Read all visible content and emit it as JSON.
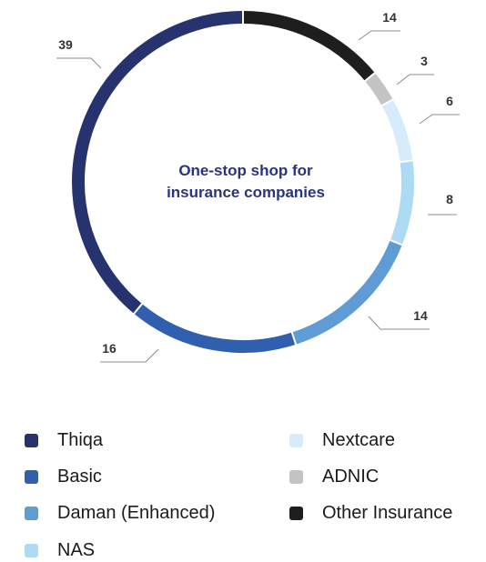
{
  "chart_data": {
    "type": "pie",
    "donut": true,
    "title": "One-stop shop for insurance companies",
    "title_lines": [
      "One-stop shop for",
      "insurance companies"
    ],
    "categories": [
      "Other Insurance",
      "ADNIC",
      "Nextcare",
      "NAS",
      "Daman (Enhanced)",
      "Basic",
      "Thiqa"
    ],
    "values": [
      14,
      3,
      6,
      8,
      14,
      16,
      39
    ],
    "colors": [
      "#1e1e1e",
      "#c4c4c4",
      "#d6ecfa",
      "#aedbf4",
      "#5f9cd6",
      "#2f5fae",
      "#27336f"
    ],
    "legend_placement": "bottom",
    "legend": [
      {
        "label": "Thiqa",
        "color": "#27336f"
      },
      {
        "label": "Basic",
        "color": "#2f5fae"
      },
      {
        "label": "Daman (Enhanced)",
        "color": "#5f9cd6"
      },
      {
        "label": "NAS",
        "color": "#aedbf4"
      },
      {
        "label": "Nextcare",
        "color": "#d6ecfa"
      },
      {
        "label": "ADNIC",
        "color": "#c4c4c4"
      },
      {
        "label": "Other Insurance",
        "color": "#1e1e1e"
      }
    ]
  }
}
